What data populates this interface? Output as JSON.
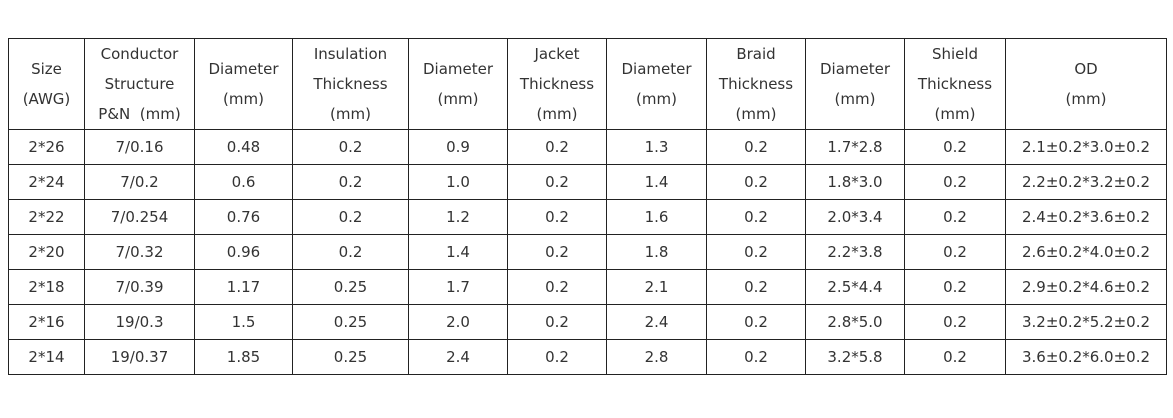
{
  "table": {
    "headers": [
      [
        "Size",
        "(AWG)"
      ],
      [
        "Conductor",
        "Structure",
        "P&N  (mm)"
      ],
      [
        "Diameter",
        "(mm)"
      ],
      [
        "Insulation",
        "Thickness",
        "(mm)"
      ],
      [
        "Diameter",
        "(mm)"
      ],
      [
        "Jacket",
        "Thickness",
        "(mm)"
      ],
      [
        "Diameter",
        "(mm)"
      ],
      [
        "Braid",
        "Thickness",
        "(mm)"
      ],
      [
        "Diameter",
        "(mm)"
      ],
      [
        "Shield",
        "Thickness",
        "(mm)"
      ],
      [
        "OD",
        "(mm)"
      ]
    ],
    "rows": [
      [
        "2*26",
        "7/0.16",
        "0.48",
        "0.2",
        "0.9",
        "0.2",
        "1.3",
        "0.2",
        "1.7*2.8",
        "0.2",
        "2.1±0.2*3.0±0.2"
      ],
      [
        "2*24",
        "7/0.2",
        "0.6",
        "0.2",
        "1.0",
        "0.2",
        "1.4",
        "0.2",
        "1.8*3.0",
        "0.2",
        "2.2±0.2*3.2±0.2"
      ],
      [
        "2*22",
        "7/0.254",
        "0.76",
        "0.2",
        "1.2",
        "0.2",
        "1.6",
        "0.2",
        "2.0*3.4",
        "0.2",
        "2.4±0.2*3.6±0.2"
      ],
      [
        "2*20",
        "7/0.32",
        "0.96",
        "0.2",
        "1.4",
        "0.2",
        "1.8",
        "0.2",
        "2.2*3.8",
        "0.2",
        "2.6±0.2*4.0±0.2"
      ],
      [
        "2*18",
        "7/0.39",
        "1.17",
        "0.25",
        "1.7",
        "0.2",
        "2.1",
        "0.2",
        "2.5*4.4",
        "0.2",
        "2.9±0.2*4.6±0.2"
      ],
      [
        "2*16",
        "19/0.3",
        "1.5",
        "0.25",
        "2.0",
        "0.2",
        "2.4",
        "0.2",
        "2.8*5.0",
        "0.2",
        "3.2±0.2*5.2±0.2"
      ],
      [
        "2*14",
        "19/0.37",
        "1.85",
        "0.25",
        "2.4",
        "0.2",
        "2.8",
        "0.2",
        "3.2*5.8",
        "0.2",
        "3.6±0.2*6.0±0.2"
      ]
    ]
  }
}
